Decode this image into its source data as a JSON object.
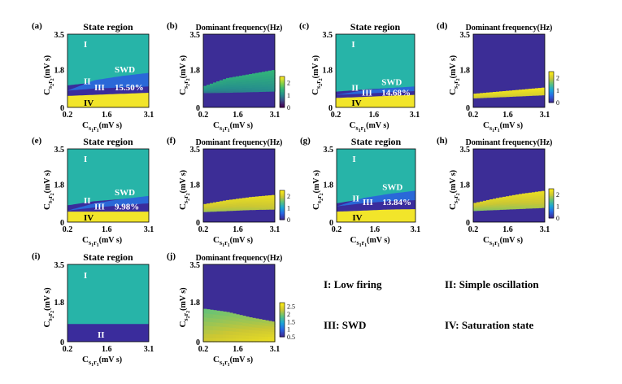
{
  "colors": {
    "cyan": "#27b4a8",
    "navy": "#3a2c9c",
    "blue": "#2a68d8",
    "yellow": "#f2e52a",
    "freqDark": "#3c2d96"
  },
  "chart_data": [
    {
      "panel": "(a)",
      "type": "heatmap",
      "kind": "state",
      "title": "State region",
      "xlabel": "C_s1r1 (mV s)",
      "ylabel": "C_s2r2 (mV s)",
      "x_ticks": [
        "0.2",
        "1.6",
        "3.1"
      ],
      "y_ticks": [
        "3.5",
        "1.8",
        "0"
      ],
      "xlim": [
        0.2,
        3.1
      ],
      "ylim": [
        0,
        3.5
      ],
      "boundaries": {
        "IV_top": [
          0.55,
          0.6,
          0.65,
          0.7
        ],
        "III_top": [
          0.8,
          0.9,
          0.95,
          1.0
        ],
        "II_top": [
          1.05,
          1.2,
          1.35,
          1.45
        ],
        "SWD_top": [
          0.8,
          1.3,
          1.5,
          1.65
        ]
      },
      "region_labels": [
        "I",
        "II",
        "III",
        "IV",
        "SWD"
      ],
      "swd_percent": "15.50%"
    },
    {
      "panel": "(b)",
      "type": "heatmap",
      "kind": "freq",
      "title": "Dominant frequency(Hz)",
      "xlabel": "C_s1r1 (mV s)",
      "ylabel": "C_s2r2 (mV s)",
      "x_ticks": [
        "0.2",
        "1.6",
        "3.1"
      ],
      "y_ticks": [
        "3.5",
        "1.8",
        "0"
      ],
      "xlim": [
        0.2,
        3.1
      ],
      "ylim": [
        0,
        3.5
      ],
      "colorbar": {
        "min": 0,
        "max": 2.5,
        "ticks": [
          "2",
          "1",
          "0"
        ]
      },
      "band": {
        "bottom": [
          0.7,
          0.72,
          0.75,
          0.78
        ],
        "top": [
          1.0,
          1.4,
          1.6,
          1.8
        ],
        "freq_range": [
          0.9,
          1.6
        ]
      }
    },
    {
      "panel": "(c)",
      "type": "heatmap",
      "kind": "state",
      "title": "State region",
      "xlabel": "C_s1r1 (mV s)",
      "ylabel": "C_s2r2 (mV s)",
      "x_ticks": [
        "0.2",
        "1.6",
        "3.1"
      ],
      "y_ticks": [
        "3.5",
        "1.8",
        "0"
      ],
      "xlim": [
        0.2,
        3.1
      ],
      "ylim": [
        0,
        3.5
      ],
      "boundaries": {
        "IV_top": [
          0.45,
          0.5,
          0.55,
          0.6
        ],
        "III_top": [
          0.6,
          0.65,
          0.72,
          0.78
        ],
        "II_top": [
          0.75,
          0.85,
          0.92,
          0.98
        ],
        "SWD_top": [
          0.6,
          0.8,
          0.92,
          1.0
        ]
      },
      "region_labels": [
        "I",
        "II",
        "III",
        "IV",
        "SWD"
      ],
      "swd_percent": "14.68%"
    },
    {
      "panel": "(d)",
      "type": "heatmap",
      "kind": "freq",
      "title": "Dominant frequency(Hz)",
      "xlabel": "C_s1r1 (mV s)",
      "ylabel": "C_s2r2 (mV s)",
      "x_ticks": [
        "0.2",
        "1.6",
        "3.1"
      ],
      "y_ticks": [
        "3.5",
        "1.8",
        "0"
      ],
      "xlim": [
        0.2,
        3.1
      ],
      "ylim": [
        0,
        3.5
      ],
      "colorbar": {
        "min": 0,
        "max": 2.5,
        "ticks": [
          "2",
          "1",
          "0"
        ]
      },
      "band": {
        "bottom": [
          0.45,
          0.5,
          0.55,
          0.6
        ],
        "top": [
          0.65,
          0.75,
          0.85,
          0.95
        ],
        "freq_range": [
          2.0,
          2.4
        ]
      }
    },
    {
      "panel": "(e)",
      "type": "heatmap",
      "kind": "state",
      "title": "State region",
      "xlabel": "C_s1r1 (mV s)",
      "ylabel": "C_s2r2 (mV s)",
      "x_ticks": [
        "0.2",
        "1.6",
        "3.1"
      ],
      "y_ticks": [
        "3.5",
        "1.8",
        "0"
      ],
      "xlim": [
        0.2,
        3.1
      ],
      "ylim": [
        0,
        3.5
      ],
      "boundaries": {
        "IV_top": [
          0.5,
          0.5,
          0.5,
          0.5
        ],
        "III_top": [
          0.55,
          0.7,
          0.8,
          0.9
        ],
        "II_top": [
          0.8,
          1.0,
          1.1,
          1.2
        ],
        "SWD_top": [
          0.55,
          0.9,
          1.1,
          1.25
        ]
      },
      "region_labels": [
        "I",
        "II",
        "III",
        "IV",
        "SWD"
      ],
      "swd_percent": "9.98%"
    },
    {
      "panel": "(f)",
      "type": "heatmap",
      "kind": "freq",
      "title": "Dominant frequency(Hz)",
      "xlabel": "C_s1r1 (mV s)",
      "ylabel": "C_s2r2 (mV s)",
      "x_ticks": [
        "0.2",
        "1.6",
        "3.1"
      ],
      "y_ticks": [
        "3.5",
        "1.8",
        "0"
      ],
      "xlim": [
        0.2,
        3.1
      ],
      "ylim": [
        0,
        3.5
      ],
      "colorbar": {
        "min": 0,
        "max": 2.5,
        "ticks": [
          "2",
          "1",
          "0"
        ]
      },
      "band": {
        "bottom": [
          0.5,
          0.55,
          0.6,
          0.62
        ],
        "top": [
          0.85,
          1.05,
          1.2,
          1.3
        ],
        "freq_range": [
          1.8,
          2.3
        ]
      }
    },
    {
      "panel": "(g)",
      "type": "heatmap",
      "kind": "state",
      "title": "State region",
      "xlabel": "C_s1r1 (mV s)",
      "ylabel": "C_s2r2 (mV s)",
      "x_ticks": [
        "0.2",
        "1.6",
        "3.1"
      ],
      "y_ticks": [
        "3.5",
        "1.8",
        "0"
      ],
      "xlim": [
        0.2,
        3.1
      ],
      "ylim": [
        0,
        3.5
      ],
      "boundaries": {
        "IV_top": [
          0.5,
          0.55,
          0.6,
          0.62
        ],
        "III_top": [
          0.75,
          0.9,
          1.0,
          1.05
        ],
        "II_top": [
          0.9,
          1.1,
          1.3,
          1.4
        ],
        "SWD_top": [
          0.75,
          1.15,
          1.35,
          1.5
        ]
      },
      "region_labels": [
        "I",
        "II",
        "III",
        "IV",
        "SWD"
      ],
      "swd_percent": "13.84%"
    },
    {
      "panel": "(h)",
      "type": "heatmap",
      "kind": "freq",
      "title": "Dominant frequency(Hz)",
      "xlabel": "C_s1r1 (mV s)",
      "ylabel": "C_s2r2 (mV s)",
      "x_ticks": [
        "0.2",
        "1.6",
        "3.1"
      ],
      "y_ticks": [
        "3.5",
        "1.8",
        "0"
      ],
      "xlim": [
        0.2,
        3.1
      ],
      "ylim": [
        0,
        3.5
      ],
      "colorbar": {
        "min": 0,
        "max": 2.5,
        "ticks": [
          "2",
          "1",
          "0"
        ]
      },
      "band": {
        "bottom": [
          0.55,
          0.6,
          0.65,
          0.7
        ],
        "top": [
          0.9,
          1.15,
          1.35,
          1.5
        ],
        "freq_range": [
          1.7,
          2.3
        ]
      }
    },
    {
      "panel": "(i)",
      "type": "heatmap",
      "kind": "state",
      "title": "State region",
      "xlabel": "C_s1r1 (mV s)",
      "ylabel": "C_s2r2 (mV s)",
      "x_ticks": [
        "0.2",
        "1.6",
        "3.1"
      ],
      "y_ticks": [
        "3.5",
        "1.8",
        "0"
      ],
      "xlim": [
        0.2,
        3.1
      ],
      "ylim": [
        0,
        3.5
      ],
      "boundaries": {
        "II_top": [
          0.8,
          0.8,
          0.8,
          0.8
        ]
      },
      "region_labels": [
        "I",
        "II"
      ],
      "swd_percent": ""
    },
    {
      "panel": "(j)",
      "type": "heatmap",
      "kind": "freq",
      "title": "Dominant frequency(Hz)",
      "xlabel": "C_s1r1 (mV s)",
      "ylabel": "C_s2r2 (mV s)",
      "x_ticks": [
        "0.2",
        "1.6",
        "3.1"
      ],
      "y_ticks": [
        "3.5",
        "1.8",
        "0"
      ],
      "xlim": [
        0.2,
        3.1
      ],
      "ylim": [
        0,
        3.5
      ],
      "colorbar": {
        "min": 0.5,
        "max": 2.75,
        "ticks": [
          "2.5",
          "2",
          "1.5",
          "1",
          "0.5"
        ]
      },
      "band": {
        "bottom": [
          0.0,
          0.0,
          0.0,
          0.0
        ],
        "top": [
          1.5,
          1.35,
          1.1,
          0.9
        ],
        "freq_range": [
          1.9,
          2.6
        ]
      }
    }
  ],
  "legend": {
    "I": "I: Low firing",
    "II": "II: Simple oscillation",
    "III": "III: SWD",
    "IV": "IV: Saturation state"
  }
}
